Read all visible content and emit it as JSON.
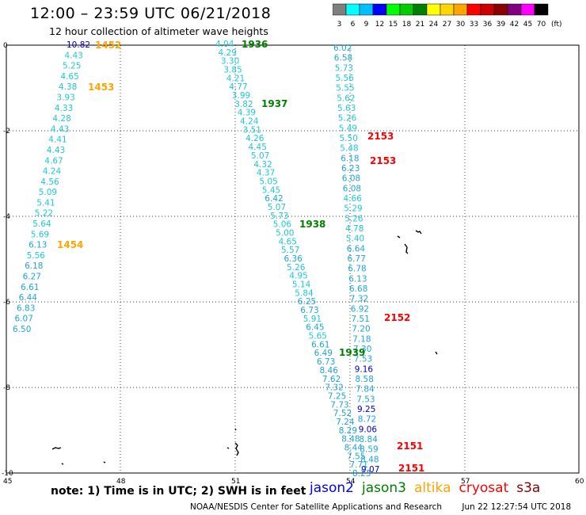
{
  "title": "12:00 – 23:59 UTC 06/21/2018",
  "subtitle": "12 hour collection of altimeter wave heights",
  "legend": {
    "unit": "(ft)",
    "swatches": [
      {
        "label": "3",
        "color": "#7f7f7f"
      },
      {
        "label": "6",
        "color": "#00ffff"
      },
      {
        "label": "9",
        "color": "#00bfff"
      },
      {
        "label": "12",
        "color": "#0000ff"
      },
      {
        "label": "15",
        "color": "#00ff00"
      },
      {
        "label": "18",
        "color": "#00cc00"
      },
      {
        "label": "21",
        "color": "#008000"
      },
      {
        "label": "24",
        "color": "#ffff00"
      },
      {
        "label": "27",
        "color": "#ffd700"
      },
      {
        "label": "30",
        "color": "#ffa500"
      },
      {
        "label": "33",
        "color": "#ff0000"
      },
      {
        "label": "36",
        "color": "#cc0000"
      },
      {
        "label": "39",
        "color": "#8b0000"
      },
      {
        "label": "42",
        "color": "#800080"
      },
      {
        "label": "45",
        "color": "#ff00ff"
      },
      {
        "label": "70",
        "color": "#000000"
      }
    ]
  },
  "axes": {
    "x_ticks": [
      "45",
      "48",
      "51",
      "54",
      "57",
      "60"
    ],
    "y_ticks": [
      "0",
      "-2",
      "-4",
      "-6",
      "-8",
      "-10"
    ]
  },
  "note": "note: 1) Time is in UTC; 2) SWH is in feet",
  "satellites": [
    {
      "name": "jason2",
      "color": "#0000ff"
    },
    {
      "name": "jason3",
      "color": "#008000"
    },
    {
      "name": "altika",
      "color": "#ffa500"
    },
    {
      "name": "cryosat",
      "color": "#ff0000"
    },
    {
      "name": "s3a",
      "color": "#8b0000"
    }
  ],
  "footer": {
    "org": "NOAA/NESDIS Center for Satellite Applications and Research",
    "timestamp": "Jun 22 12:27:54 UTC 2018"
  },
  "tracks": [
    {
      "id": "altika",
      "color": "#ffa500",
      "values": [
        "10.82",
        "4.43",
        "5.25",
        "4.65",
        "4.38",
        "3.93",
        "4.33",
        "4.28",
        "4.43",
        "4.41",
        "4.43",
        "4.67",
        "4.24",
        "4.56",
        "5.09",
        "5.41",
        "5.22",
        "5.64",
        "5.69",
        "6.13",
        "5.56",
        "6.18",
        "6.27",
        "6.61",
        "6.44",
        "6.83",
        "6.07",
        "6.50"
      ],
      "times": [
        "1452",
        "1453",
        "1454"
      ]
    },
    {
      "id": "jason3",
      "color": "#008000",
      "values": [
        "4.04",
        "4.29",
        "3.30",
        "3.85",
        "4.21",
        "4.77",
        "3.99",
        "3.82",
        "4.39",
        "4.24",
        "3.51",
        "4.26",
        "4.45",
        "5.07",
        "4.32",
        "4.37",
        "5.05",
        "5.45",
        "6.42",
        "5.07",
        "5.73",
        "5.06",
        "5.00",
        "4.65",
        "5.57",
        "6.36",
        "5.26",
        "4.95",
        "5.14",
        "5.84",
        "6.25",
        "6.73",
        "5.91",
        "6.45",
        "5.65",
        "6.61",
        "6.49",
        "6.73",
        "8.46",
        "7.62",
        "7.32",
        "7.25",
        "7.73",
        "7.52",
        "7.24",
        "8.29",
        "8.48",
        "8.44",
        "7.55",
        "7.71",
        "8.23"
      ],
      "times": [
        "1936",
        "1937",
        "1938",
        "1939"
      ]
    },
    {
      "id": "cryosat",
      "color": "#ff0000",
      "values": [
        "6.02",
        "6.58",
        "5.73",
        "5.56",
        "5.55",
        "5.62",
        "5.63",
        "5.26",
        "5.49",
        "5.50",
        "5.48",
        "6.18",
        "6.23",
        "6.08",
        "6.08",
        "4.66",
        "5.29",
        "5.26",
        "4.78",
        "5.40",
        "6.64",
        "6.77",
        "6.78",
        "6.13",
        "6.68",
        "7.32",
        "6.92",
        "7.51",
        "7.20",
        "7.18",
        "7.30",
        "7.53",
        "9.16",
        "8.58",
        "7.84",
        "7.53",
        "9.25",
        "8.72",
        "9.06",
        "8.84",
        "8.59",
        "8.48",
        "9.07"
      ],
      "times": [
        "2153",
        "2153",
        "2152",
        "2151",
        "2151"
      ]
    }
  ]
}
